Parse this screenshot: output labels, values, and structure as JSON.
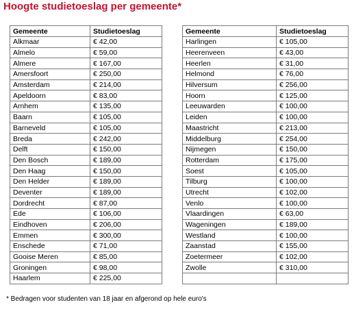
{
  "title": "Hoogte studietoeslag per gemeente*",
  "columns": {
    "municipality": "Gemeente",
    "allowance": "Studietoeslag"
  },
  "left_table": [
    {
      "gemeente": "Alkmaar",
      "bedrag": "€ 42,00"
    },
    {
      "gemeente": "Almelo",
      "bedrag": "€ 59,00"
    },
    {
      "gemeente": "Almere",
      "bedrag": "€ 167,00"
    },
    {
      "gemeente": "Amersfoort",
      "bedrag": "€ 250,00"
    },
    {
      "gemeente": "Amsterdam",
      "bedrag": "€ 214,00"
    },
    {
      "gemeente": "Apeldoorn",
      "bedrag": "€ 83,00"
    },
    {
      "gemeente": "Arnhem",
      "bedrag": "€ 135,00"
    },
    {
      "gemeente": "Baarn",
      "bedrag": "€ 105,00"
    },
    {
      "gemeente": "Barneveld",
      "bedrag": "€ 105,00"
    },
    {
      "gemeente": "Breda",
      "bedrag": "€ 242,00"
    },
    {
      "gemeente": "Delft",
      "bedrag": "€ 150,00"
    },
    {
      "gemeente": "Den Bosch",
      "bedrag": "€ 189,00"
    },
    {
      "gemeente": "Den Haag",
      "bedrag": "€ 150,00"
    },
    {
      "gemeente": "Den Helder",
      "bedrag": "€ 189,00"
    },
    {
      "gemeente": "Deventer",
      "bedrag": "€ 189,00"
    },
    {
      "gemeente": "Dordrecht",
      "bedrag": "€ 87,00"
    },
    {
      "gemeente": "Ede",
      "bedrag": "€ 106,00"
    },
    {
      "gemeente": "Eindhoven",
      "bedrag": "€ 206,00"
    },
    {
      "gemeente": "Emmen",
      "bedrag": "€ 300,00"
    },
    {
      "gemeente": "Enschede",
      "bedrag": "€ 71,00"
    },
    {
      "gemeente": "Gooise Meren",
      "bedrag": "€ 85,00"
    },
    {
      "gemeente": "Groningen",
      "bedrag": "€ 98,00"
    },
    {
      "gemeente": "Haarlem",
      "bedrag": "€ 225,00"
    }
  ],
  "right_table": [
    {
      "gemeente": "Harlingen",
      "bedrag": "€ 105,00"
    },
    {
      "gemeente": "Heerenveen",
      "bedrag": "€ 43,00"
    },
    {
      "gemeente": "Heerlen",
      "bedrag": "€ 31,00"
    },
    {
      "gemeente": "Helmond",
      "bedrag": "€ 76,00"
    },
    {
      "gemeente": "Hilversum",
      "bedrag": "€ 256,00"
    },
    {
      "gemeente": "Hoorn",
      "bedrag": "€ 125,00"
    },
    {
      "gemeente": "Leeuwarden",
      "bedrag": "€ 100,00"
    },
    {
      "gemeente": "Leiden",
      "bedrag": "€ 100,00"
    },
    {
      "gemeente": "Maastricht",
      "bedrag": "€ 213,00"
    },
    {
      "gemeente": "Middelburg",
      "bedrag": "€ 254,00"
    },
    {
      "gemeente": "Nijmegen",
      "bedrag": "€ 150,00"
    },
    {
      "gemeente": "Rotterdam",
      "bedrag": "€ 175,00"
    },
    {
      "gemeente": "Soest",
      "bedrag": "€ 105,00"
    },
    {
      "gemeente": "Tilburg",
      "bedrag": "€ 100,00"
    },
    {
      "gemeente": "Utrecht",
      "bedrag": "€ 102,00"
    },
    {
      "gemeente": "Venlo",
      "bedrag": "€ 100,00"
    },
    {
      "gemeente": "Vlaardingen",
      "bedrag": "€ 63,00"
    },
    {
      "gemeente": "Wageningen",
      "bedrag": "€ 189,00"
    },
    {
      "gemeente": "Westland",
      "bedrag": "€ 100,00"
    },
    {
      "gemeente": "Zaanstad",
      "bedrag": "€ 155,00"
    },
    {
      "gemeente": "Zoetermeer",
      "bedrag": "€ 102,00"
    },
    {
      "gemeente": "Zwolle",
      "bedrag": "€ 310,00"
    },
    {
      "gemeente": "",
      "bedrag": ""
    }
  ],
  "footnote": "* Bedragen voor studenten van 18 jaar en afgerond op hele euro's",
  "colors": {
    "title": "#c8102e",
    "border": "#7a7a7a"
  }
}
